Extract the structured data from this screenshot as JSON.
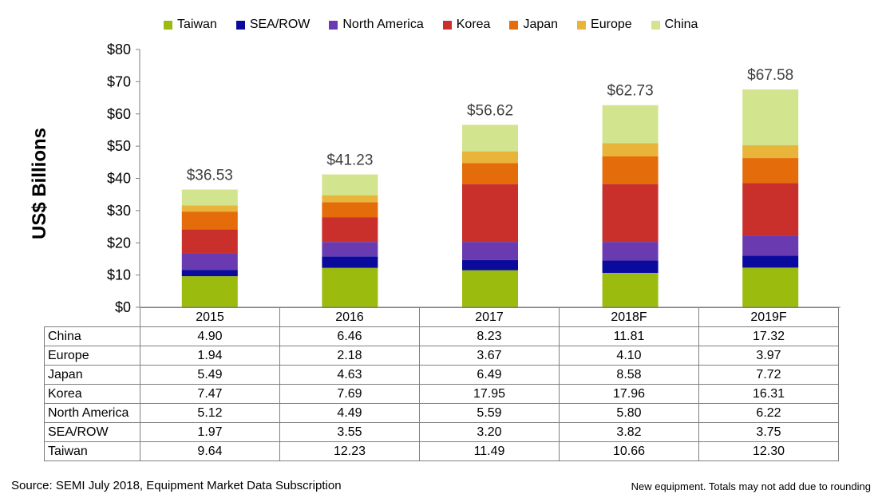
{
  "chart_data": {
    "type": "bar",
    "stacked": true,
    "categories": [
      "2015",
      "2016",
      "2017",
      "2018F",
      "2019F"
    ],
    "series": [
      {
        "name": "Taiwan",
        "color": "#9bbb0f",
        "values": [
          9.64,
          12.23,
          11.49,
          10.66,
          12.3
        ]
      },
      {
        "name": "SEA/ROW",
        "color": "#0a0a9c",
        "values": [
          1.97,
          3.55,
          3.2,
          3.82,
          3.75
        ]
      },
      {
        "name": "North America",
        "color": "#6a3ab0",
        "values": [
          5.12,
          4.49,
          5.59,
          5.8,
          6.22
        ]
      },
      {
        "name": "Korea",
        "color": "#c9302c",
        "values": [
          7.47,
          7.69,
          17.95,
          17.96,
          16.31
        ]
      },
      {
        "name": "Japan",
        "color": "#e46c0a",
        "values": [
          5.49,
          4.63,
          6.49,
          8.58,
          7.72
        ]
      },
      {
        "name": "Europe",
        "color": "#e8b43a",
        "values": [
          1.94,
          2.18,
          3.67,
          4.1,
          3.97
        ]
      },
      {
        "name": "China",
        "color": "#d3e48f",
        "values": [
          4.9,
          6.46,
          8.23,
          11.81,
          17.32
        ]
      }
    ],
    "totals": [
      "$36.53",
      "$41.23",
      "$56.62",
      "$62.73",
      "$67.58"
    ],
    "ylabel": "US$ Billions",
    "ylim": [
      0,
      80
    ],
    "yticks": [
      "$0",
      "$10",
      "$20",
      "$30",
      "$40",
      "$50",
      "$60",
      "$70",
      "$80"
    ],
    "grid": false,
    "legend_position": "top",
    "table": {
      "rows": [
        {
          "label": "China",
          "values": [
            "4.90",
            "6.46",
            "8.23",
            "11.81",
            "17.32"
          ]
        },
        {
          "label": "Europe",
          "values": [
            "1.94",
            "2.18",
            "3.67",
            "4.10",
            "3.97"
          ]
        },
        {
          "label": "Japan",
          "values": [
            "5.49",
            "4.63",
            "6.49",
            "8.58",
            "7.72"
          ]
        },
        {
          "label": "Korea",
          "values": [
            "7.47",
            "7.69",
            "17.95",
            "17.96",
            "16.31"
          ]
        },
        {
          "label": "North America",
          "values": [
            "5.12",
            "4.49",
            "5.59",
            "5.80",
            "6.22"
          ]
        },
        {
          "label": "SEA/ROW",
          "values": [
            "1.97",
            "3.55",
            "3.20",
            "3.82",
            "3.75"
          ]
        },
        {
          "label": "Taiwan",
          "values": [
            "9.64",
            "12.23",
            "11.49",
            "10.66",
            "12.30"
          ]
        }
      ]
    }
  },
  "footer": {
    "source": "Source: SEMI July 2018, Equipment Market Data Subscription",
    "note": "New equipment. Totals may not add due to rounding"
  }
}
